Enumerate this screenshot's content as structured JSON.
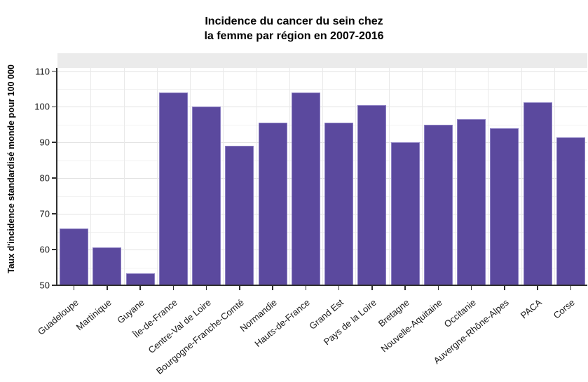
{
  "title": {
    "line1": "Incidence du cancer du sein chez",
    "line2": "la femme par région en 2007-2016"
  },
  "chart_data": {
    "type": "bar",
    "title": "Incidence du cancer du sein chez la femme par région en 2007-2016",
    "xlabel": "",
    "ylabel": "Taux d'incidence standardisé monde pour 100 000",
    "categories": [
      "Guadeloupe",
      "Martinique",
      "Guyane",
      "Île-de-France",
      "Centre-Val de Loire",
      "Bourgogne-Franche-Comté",
      "Normandie",
      "Hauts-de-France",
      "Grand Est",
      "Pays de la Loire",
      "Bretagne",
      "Nouvelle-Aquitaine",
      "Occitanie",
      "Auvergne-Rhône-Alpes",
      "PACA",
      "Corse"
    ],
    "values": [
      66,
      60.6,
      53.3,
      104,
      100,
      89,
      95.5,
      104,
      95.5,
      100.5,
      90,
      95,
      96.5,
      94,
      101.2,
      91.5
    ],
    "ylim": [
      50,
      115
    ],
    "yticks": [
      50,
      60,
      70,
      80,
      90,
      100,
      110
    ],
    "minor_yticks": [
      55,
      65,
      75,
      85,
      95,
      105
    ],
    "grid": true,
    "legend_position": "none",
    "bar_color": "#5b499e",
    "bar_edge_color": "#8c80c3",
    "strip_color": "#ebebeb",
    "axis_color": "#2f2f2f"
  }
}
